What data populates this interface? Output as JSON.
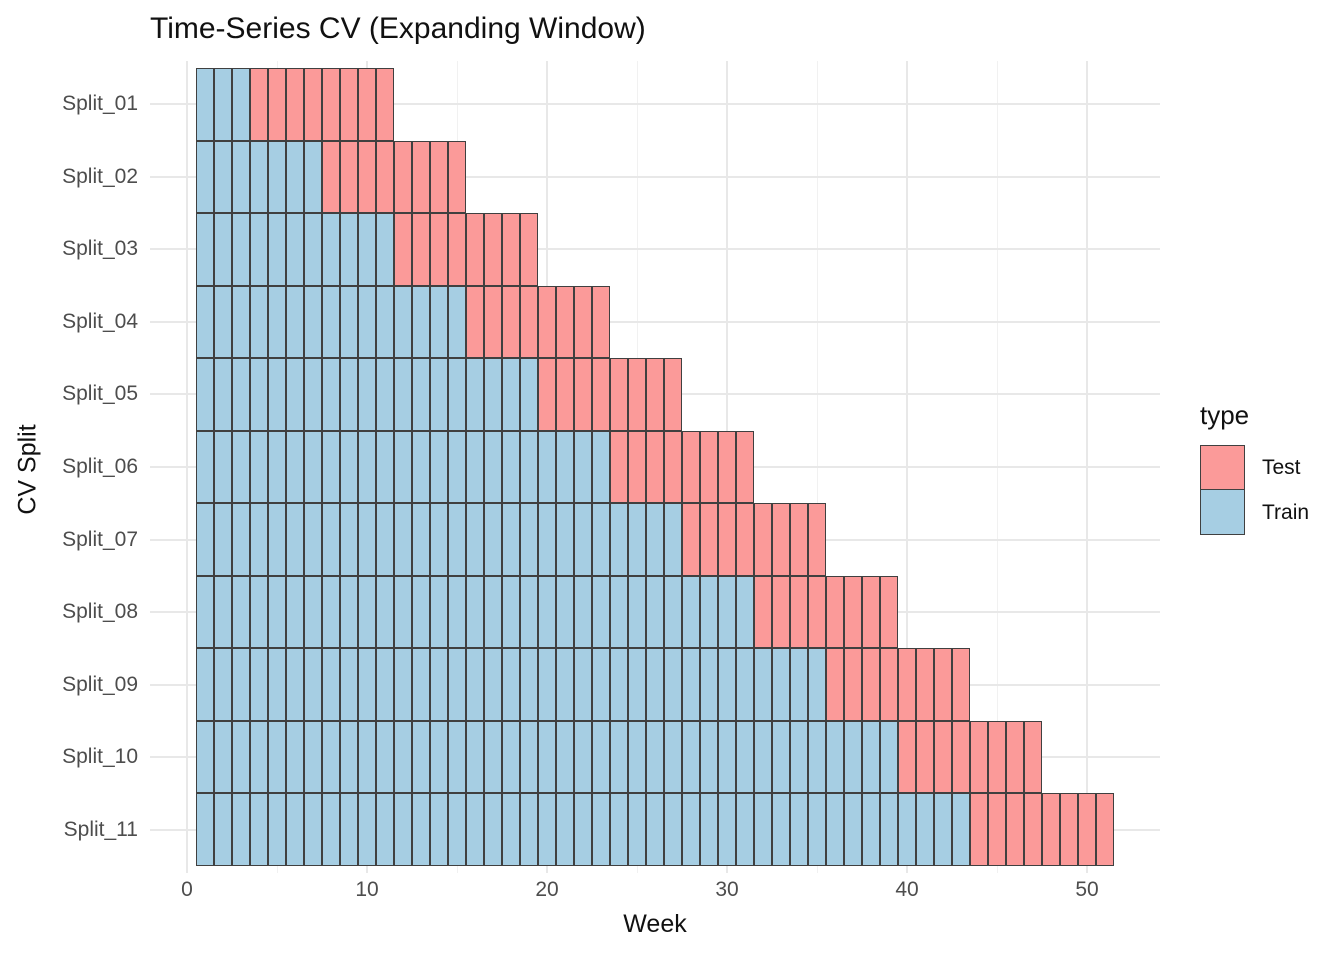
{
  "title": "Time-Series CV (Expanding Window)",
  "axes": {
    "x_label": "Week",
    "y_label": "CV Split",
    "x_ticks": [
      0,
      10,
      20,
      30,
      40,
      50
    ]
  },
  "legend": {
    "title": "type",
    "items": [
      {
        "label": "Test",
        "color": "#FB9A99"
      },
      {
        "label": "Train",
        "color": "#A6CEE3"
      }
    ]
  },
  "colors": {
    "train_fill": "#A6CEE3",
    "test_fill": "#FB9A99",
    "cell_border": "#404040",
    "grid_major": "#e8e8e8",
    "grid_minor": "#f1f1f1",
    "tick_label": "#4d4d4d"
  },
  "chart_data": {
    "type": "heatmap",
    "subtype": "time-series-cv-gantt",
    "title": "Time-Series CV (Expanding Window)",
    "xlabel": "Week",
    "ylabel": "CV Split",
    "xlim": [
      0,
      52
    ],
    "x_tick_values": [
      0,
      10,
      20,
      30,
      40,
      50
    ],
    "x_minor_grid_step": 5,
    "grid": true,
    "legend_position": "right",
    "legend_title": "type",
    "legend_entries": [
      "Test",
      "Train"
    ],
    "cell_width_weeks": 1,
    "categories": [
      "Split_01",
      "Split_02",
      "Split_03",
      "Split_04",
      "Split_05",
      "Split_06",
      "Split_07",
      "Split_08",
      "Split_09",
      "Split_10",
      "Split_11"
    ],
    "series": [
      {
        "split": "Split_01",
        "train_weeks": [
          1,
          3
        ],
        "test_weeks": [
          4,
          11
        ]
      },
      {
        "split": "Split_02",
        "train_weeks": [
          1,
          7
        ],
        "test_weeks": [
          8,
          15
        ]
      },
      {
        "split": "Split_03",
        "train_weeks": [
          1,
          11
        ],
        "test_weeks": [
          12,
          19
        ]
      },
      {
        "split": "Split_04",
        "train_weeks": [
          1,
          15
        ],
        "test_weeks": [
          16,
          23
        ]
      },
      {
        "split": "Split_05",
        "train_weeks": [
          1,
          19
        ],
        "test_weeks": [
          20,
          27
        ]
      },
      {
        "split": "Split_06",
        "train_weeks": [
          1,
          23
        ],
        "test_weeks": [
          24,
          31
        ]
      },
      {
        "split": "Split_07",
        "train_weeks": [
          1,
          27
        ],
        "test_weeks": [
          28,
          35
        ]
      },
      {
        "split": "Split_08",
        "train_weeks": [
          1,
          31
        ],
        "test_weeks": [
          32,
          39
        ]
      },
      {
        "split": "Split_09",
        "train_weeks": [
          1,
          35
        ],
        "test_weeks": [
          36,
          43
        ]
      },
      {
        "split": "Split_10",
        "train_weeks": [
          1,
          39
        ],
        "test_weeks": [
          40,
          47
        ]
      },
      {
        "split": "Split_11",
        "train_weeks": [
          1,
          43
        ],
        "test_weeks": [
          44,
          51
        ]
      }
    ]
  }
}
